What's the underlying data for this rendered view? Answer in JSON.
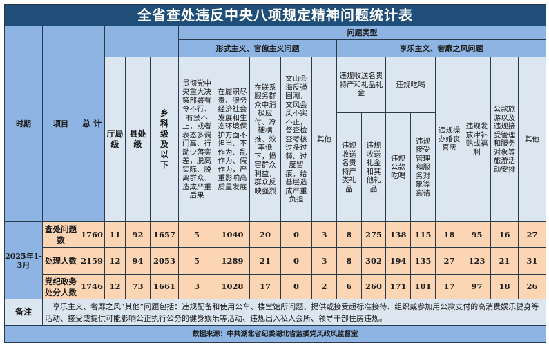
{
  "title": "全省查处违反中央八项规定精神问题统计表",
  "headers": {
    "period": "时期",
    "item": "项目",
    "total": "总 计",
    "problem_type": "问题类型",
    "formalism": "形式主义、官僚主义问题",
    "hedonism": "享乐主义、奢靡之风问题",
    "levels": [
      "厅局级",
      "县处级",
      "乡科级及以下"
    ],
    "formalism_cols": [
      "贯彻党中央重大决策部署有令不行、有禁不止，或者表态多调门高、行动少落实差，脱离实际、脱离群众，造成严重后果",
      "在履职尽责、服务经济社会发展和生态环境保护方面不担当、不作为、乱作为、假作为，严重影响高质量发展",
      "在联系服务群众中消极应付、冷硬横推、效率低下，损害群众利益，群众反映强烈",
      "文山会海反弹回潮，文风会风不实不正，督查检查考核过多过频、过度留痕，给基层造成严重负担",
      "其他"
    ],
    "gifts_group": "违规收送名贵特产和礼品礼金",
    "gifts_cols": [
      "违规收送名贵特产类礼品",
      "违规收送礼金和其他礼品"
    ],
    "dining_group": "违规吃喝",
    "dining_cols": [
      "违规公款吃喝",
      "违规接受管理和服务对象等宴请"
    ],
    "hedonism_cols": [
      "违规操办婚丧喜庆",
      "违规发放津补贴或福利",
      "公款旅游以及违规接受管理和服务对象等旅游活动安排",
      "其他"
    ]
  },
  "period": "2025年1-3月",
  "rows": [
    {
      "item": "查处问题数",
      "values": [
        "1760",
        "11",
        "92",
        "1657",
        "5",
        "1040",
        "20",
        "0",
        "3",
        "8",
        "275",
        "138",
        "115",
        "18",
        "95",
        "16",
        "27"
      ]
    },
    {
      "item": "处理人数",
      "values": [
        "2159",
        "12",
        "94",
        "2053",
        "5",
        "1289",
        "21",
        "0",
        "3",
        "8",
        "302",
        "194",
        "135",
        "27",
        "123",
        "21",
        "31"
      ]
    },
    {
      "item": "党纪政务处分人数",
      "values": [
        "1746",
        "12",
        "73",
        "1661",
        "3",
        "1028",
        "17",
        "0",
        "2",
        "6",
        "260",
        "171",
        "101",
        "17",
        "97",
        "18",
        "26"
      ]
    }
  ],
  "note_label": "备注",
  "note": "　享乐主义、奢靡之风“其他”问题包括：违规配备和使用公车、楼堂馆所问题、提供或接受超标准接待、组织或参加用公款支付的高消费娱乐健身等活动、接受或提供可能影响公正执行公务的健身娱乐等活动、违规出入私人会所、领导干部住房违规。",
  "source": "数据来源：中共湖北省纪委湖北省监委党风政风监督室",
  "colors": {
    "title_bg": "#1f4e79",
    "header_bg": "#8db4e2",
    "light_bg": "#dce6f1",
    "data_bg": "#fcd5b4"
  }
}
